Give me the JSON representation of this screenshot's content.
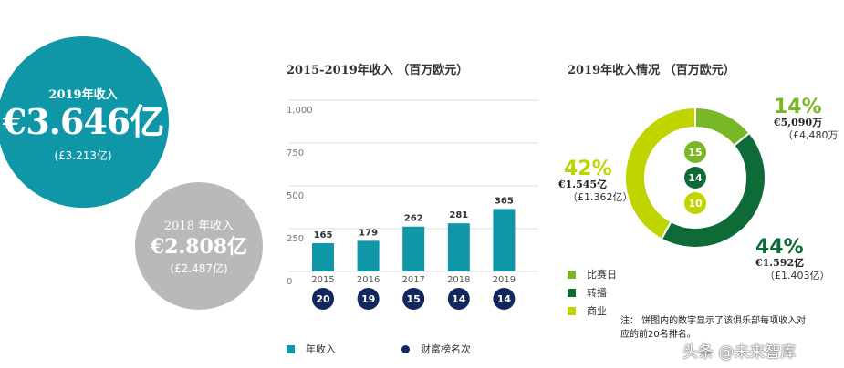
{
  "summary": {
    "y2019": {
      "label": "2019年收入",
      "value": "€3.646亿",
      "sub": "(£3.213亿)"
    },
    "y2018": {
      "label": "2018 年收入",
      "value": "€2.808亿",
      "sub": "(£2.487亿)"
    }
  },
  "chart_data": [
    {
      "type": "bar",
      "title": "2015-2019年收入 （百万欧元）",
      "categories": [
        "2015",
        "2016",
        "2017",
        "2018",
        "2019"
      ],
      "values": [
        165,
        179,
        262,
        281,
        365
      ],
      "ranks": [
        "20",
        "19",
        "15",
        "14",
        "14"
      ],
      "yticks": [
        "1,000",
        "750",
        "500",
        "250",
        "0"
      ],
      "ylim": [
        0,
        1000
      ],
      "legend": {
        "revenue": "年收入",
        "rank": "财富榜名次"
      },
      "colors": {
        "bar": "#0f97a8",
        "rank": "#12275e"
      }
    },
    {
      "type": "pie",
      "title": "2019年收入情况 （百万欧元）",
      "slices": [
        {
          "name": "比赛日",
          "percent": 14,
          "pct_label": "14%",
          "value": "€5,090万",
          "sub": "（£4,480万）",
          "rank": "15",
          "color": "#7ab726"
        },
        {
          "name": "转播",
          "percent": 44,
          "pct_label": "44%",
          "value": "€1.592亿",
          "sub": "（£1.403亿）",
          "rank": "14",
          "color": "#0e6b38"
        },
        {
          "name": "商业",
          "percent": 42,
          "pct_label": "42%",
          "value": "€1.545亿",
          "sub": "（£1.362亿）",
          "rank": "10",
          "color": "#c0d400"
        }
      ],
      "note": "注：  饼图内的数字显示了该俱乐部每项收入对应的前20名排名。"
    }
  ],
  "watermark": "头条 @未来智库"
}
